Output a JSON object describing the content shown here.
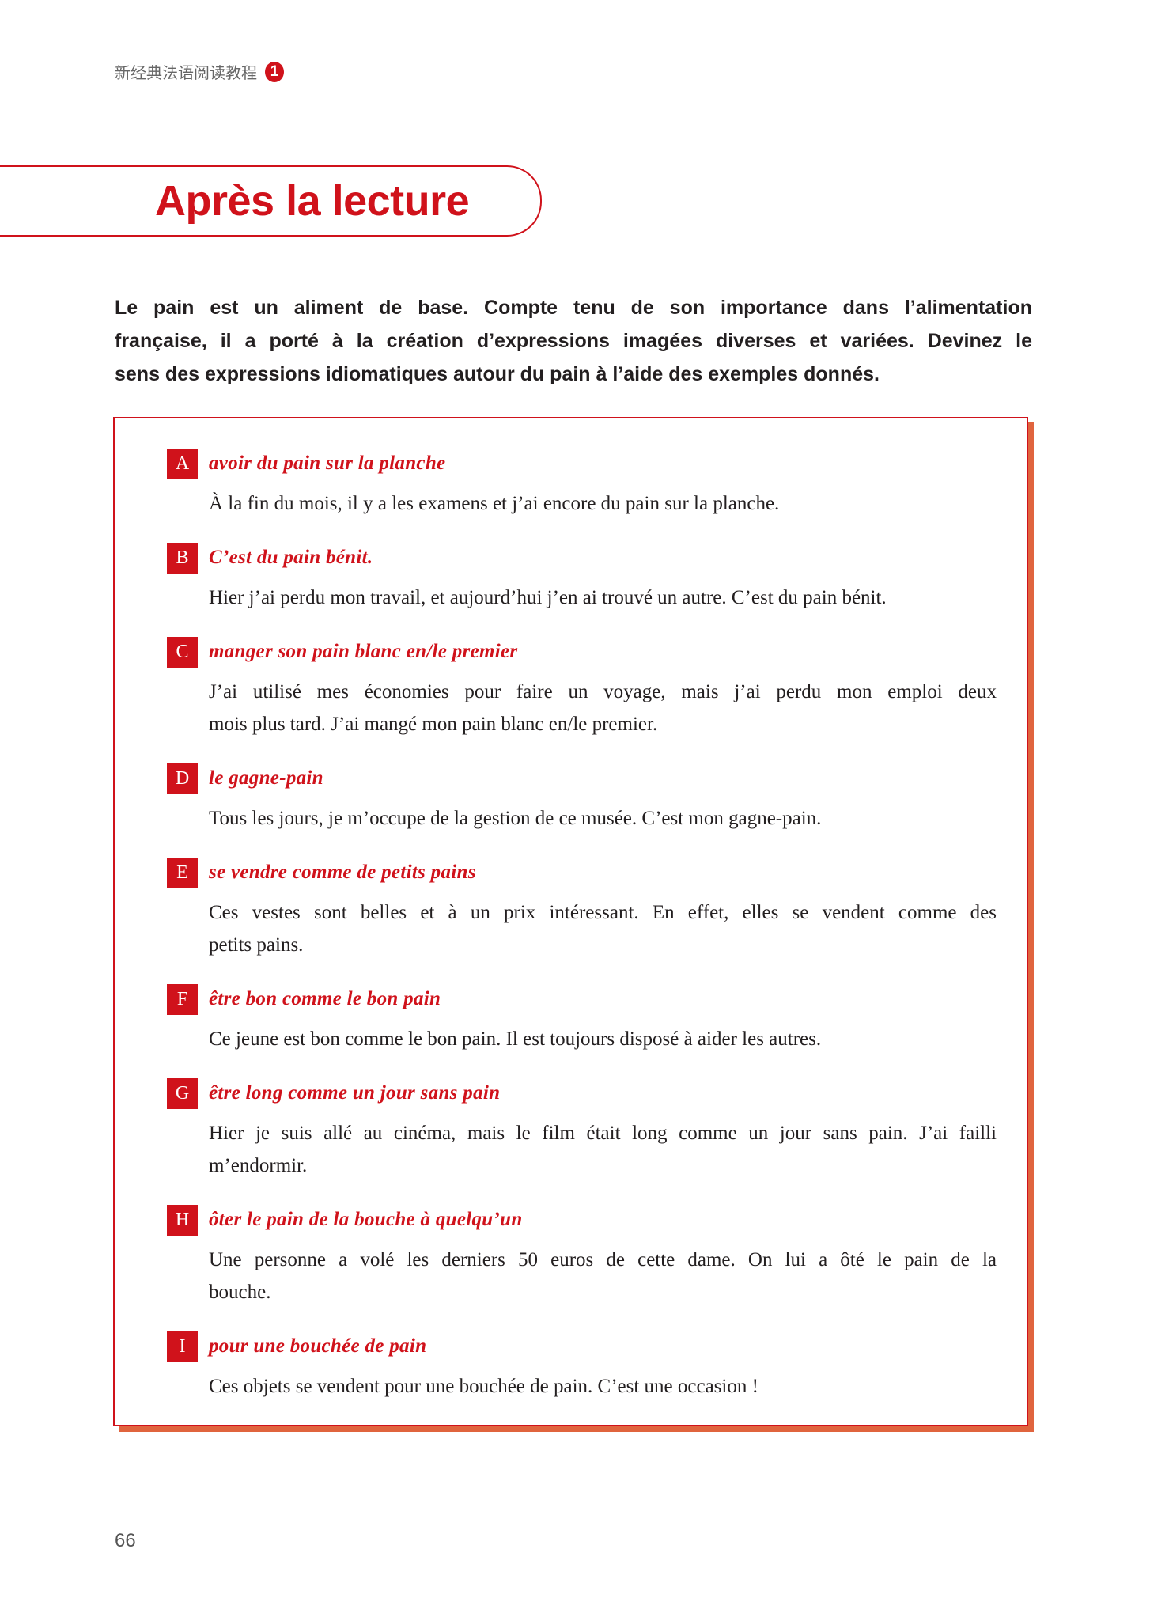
{
  "header": {
    "book_title": "新经典法语阅读教程",
    "volume": "1"
  },
  "section_title": "Après la lecture",
  "intro_lines": [
    "Le pain est un aliment de base. Compte tenu de son importance dans l’alimentation",
    "française, il a porté à la création d’expressions imagées diverses et variées. Devinez le",
    "sens des expressions idiomatiques autour du pain à l’aide des exemples donnés."
  ],
  "items": [
    {
      "letter": "A",
      "phrase": "avoir du pain sur la planche",
      "example": [
        "À la fin du mois, il y a les examens et j’ai encore du pain sur la planche."
      ]
    },
    {
      "letter": "B",
      "phrase": "C’est du pain bénit.",
      "example": [
        "Hier j’ai perdu mon travail, et aujourd’hui j’en ai trouvé un autre. C’est du pain bénit."
      ]
    },
    {
      "letter": "C",
      "phrase": "manger son pain blanc en/le premier",
      "example": [
        "J’ai utilisé mes économies pour faire un voyage, mais j’ai perdu mon emploi deux",
        "mois plus tard. J’ai mangé mon pain blanc en/le premier."
      ]
    },
    {
      "letter": "D",
      "phrase": "le gagne-pain",
      "example": [
        "Tous les jours, je m’occupe de la gestion de ce musée. C’est mon gagne-pain."
      ]
    },
    {
      "letter": "E",
      "phrase": "se vendre comme de petits pains",
      "example": [
        "Ces vestes sont belles et à un prix intéressant. En effet, elles se vendent comme des",
        "petits pains."
      ]
    },
    {
      "letter": "F",
      "phrase": "être bon comme le bon pain",
      "example": [
        "Ce jeune est bon comme le bon pain. Il est toujours disposé à aider les autres."
      ]
    },
    {
      "letter": "G",
      "phrase": "être long comme un jour sans pain",
      "example": [
        "Hier je suis allé au cinéma, mais le film était long comme un jour sans pain. J’ai failli",
        "m’endormir."
      ]
    },
    {
      "letter": "H",
      "phrase": "ôter le pain de la bouche à quelqu’un",
      "example": [
        "Une personne a volé les derniers 50 euros de cette dame. On lui a ôté le pain de la",
        "bouche."
      ]
    },
    {
      "letter": "I",
      "phrase": "pour une bouchée de pain",
      "example": [
        "Ces objets se vendent pour une bouchée de pain. C’est une occasion !"
      ]
    }
  ],
  "page_number": "66",
  "colors": {
    "accent": "#d0121b",
    "shadow": "#e0643e"
  }
}
